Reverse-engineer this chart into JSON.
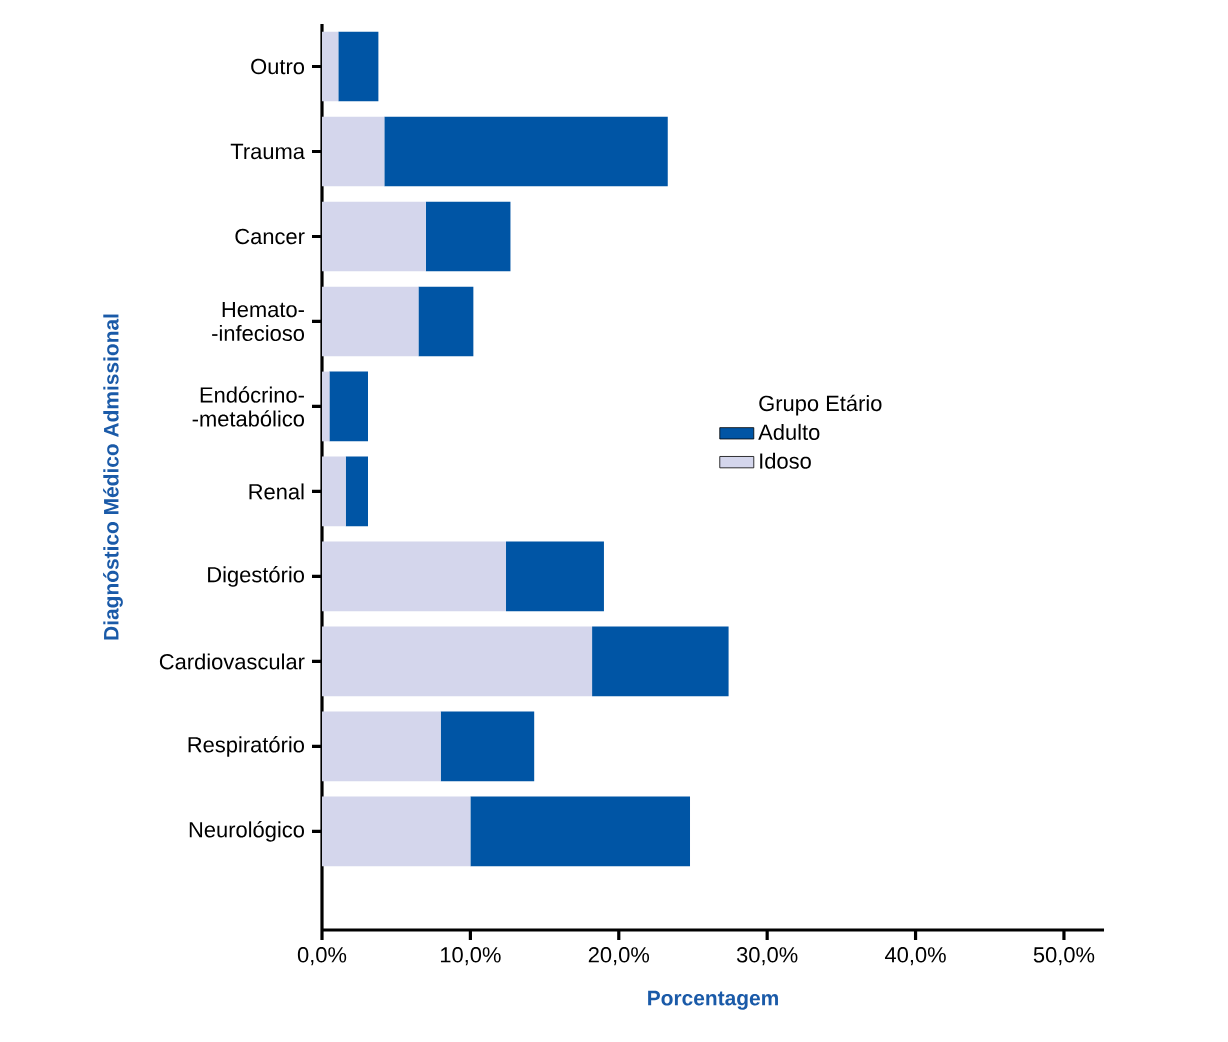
{
  "chart_data": {
    "type": "bar",
    "orientation": "horizontal",
    "stacked": true,
    "xlabel": "Porcentagem",
    "ylabel": "Diagnóstico Médico Admissional",
    "legend_title": "Grupo Etário",
    "legend": "right",
    "categories": [
      "Outro",
      "Trauma",
      "Cancer",
      "Hemato- -infecioso",
      "Endócrino- -metabólico",
      "Renal",
      "Digestório",
      "Cardiovascular",
      "Respiratório",
      "Neurológico"
    ],
    "series": [
      {
        "name": "Idoso",
        "color": "#d4d6ec",
        "values": [
          1.1,
          4.2,
          7.0,
          6.5,
          0.5,
          1.6,
          12.4,
          18.2,
          8.0,
          10.0
        ]
      },
      {
        "name": "Adulto",
        "color": "#0055a5",
        "values": [
          2.7,
          19.1,
          5.7,
          3.7,
          2.6,
          1.5,
          6.6,
          9.2,
          6.3,
          14.8
        ]
      }
    ],
    "xlim": [
      0,
      52.7
    ],
    "xticks": [
      {
        "value": 0,
        "label": "0,0%"
      },
      {
        "value": 10,
        "label": "10,0%"
      },
      {
        "value": 20,
        "label": "20,0%"
      },
      {
        "value": 30,
        "label": "30,0%"
      },
      {
        "value": 40,
        "label": "40,0%"
      },
      {
        "value": 50,
        "label": "50,0%"
      }
    ]
  }
}
